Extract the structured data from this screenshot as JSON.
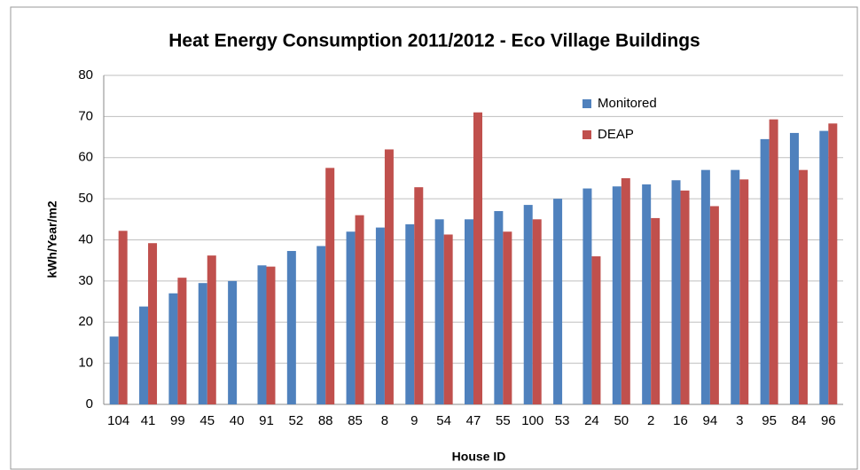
{
  "chart_data": {
    "type": "bar",
    "title": "Heat Energy Consumption 2011/2012 - Eco Village Buildings",
    "x_label": "House ID",
    "y_label": "kWh/Year/m2",
    "categories": [
      "104",
      "41",
      "99",
      "45",
      "40",
      "91",
      "52",
      "88",
      "85",
      "8",
      "9",
      "54",
      "47",
      "55",
      "100",
      "53",
      "24",
      "50",
      "2",
      "16",
      "94",
      "3",
      "95",
      "84",
      "96"
    ],
    "series": [
      {
        "name": "Monitored",
        "color": "#4f81bd",
        "values": [
          16.5,
          23.8,
          27,
          29.5,
          30,
          33.8,
          37.3,
          38.5,
          42,
          43,
          43.8,
          45,
          45,
          47,
          48.5,
          50,
          52.5,
          53,
          53.5,
          54.5,
          57,
          57,
          64.5,
          66,
          66.5
        ]
      },
      {
        "name": "DEAP",
        "color": "#c0504d",
        "values": [
          42.2,
          39.2,
          30.8,
          36.2,
          null,
          33.5,
          null,
          57.5,
          46,
          62,
          52.8,
          41.3,
          71,
          42,
          45,
          null,
          36,
          55,
          45.3,
          52,
          48.2,
          54.7,
          69.3,
          57,
          68.3
        ]
      }
    ],
    "ylim": [
      0,
      80
    ],
    "yticks": [
      0,
      10,
      20,
      30,
      40,
      50,
      60,
      70,
      80
    ],
    "grid": true,
    "legend": "upper right"
  }
}
